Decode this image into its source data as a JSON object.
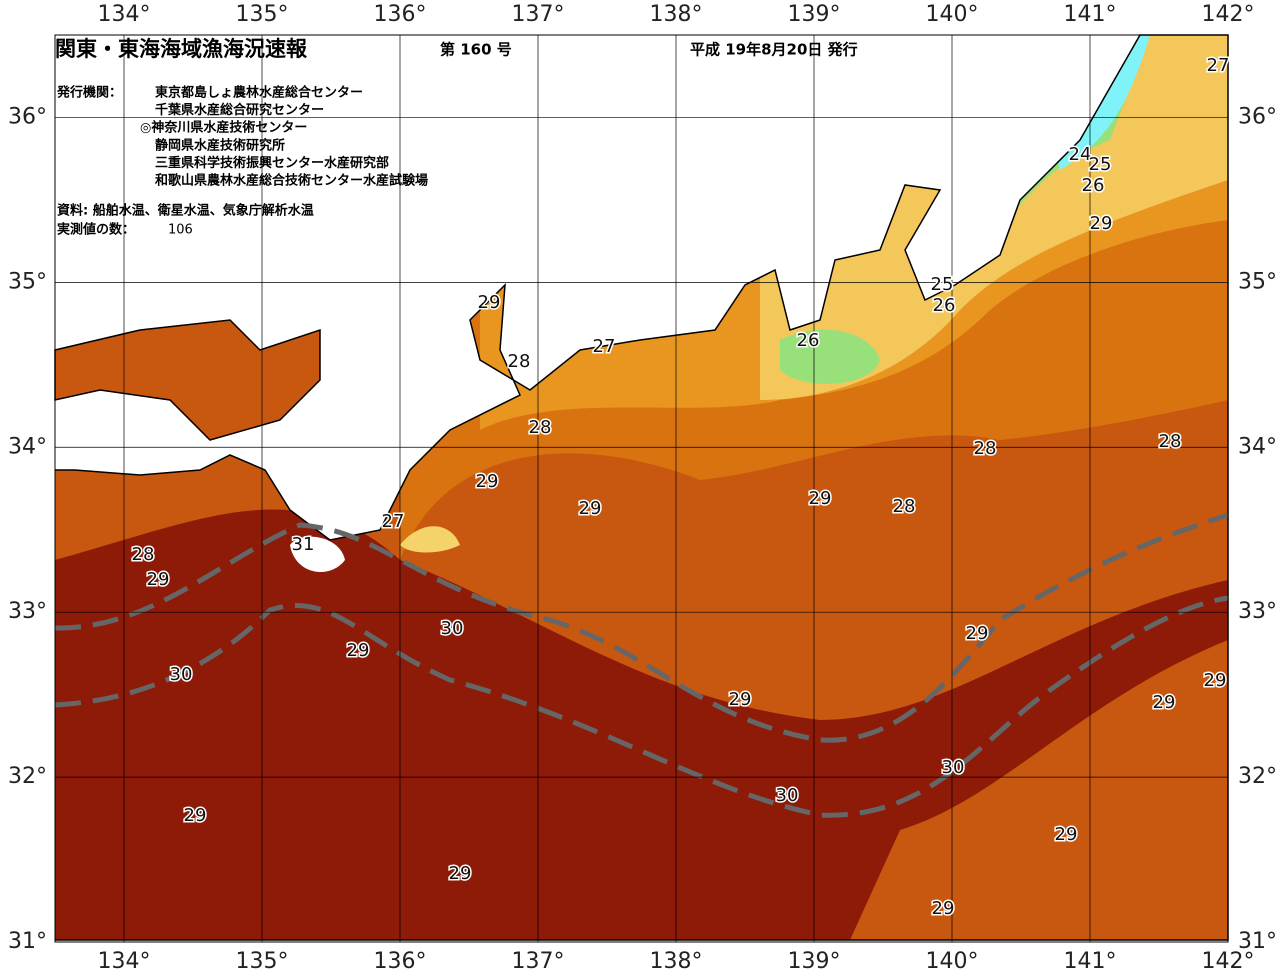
{
  "header": {
    "title": "関東・東海海域漁海況速報",
    "issue": "第 160 号",
    "date": "平成 19年8月20日 発行"
  },
  "info": {
    "publisher_label": "発行機関：",
    "publishers": [
      "東京都島しょ農林水産総合センター",
      "千葉県水産総合研究センター",
      "◎神奈川県水産技術センター",
      "静岡県水産技術研究所",
      "三重県科学技術振興センター水産研究部",
      "和歌山県農林水産総合技術センター水産試験場"
    ],
    "sources": "資料: 船舶水温、衛星水温、気象庁解析水温",
    "count_label": "実測値の数：",
    "count": 106
  },
  "map": {
    "lon_range": [
      133.5,
      142
    ],
    "lat_range": [
      31,
      36.5
    ],
    "lon_ticks": [
      {
        "value": 134,
        "label": "134°"
      },
      {
        "value": 135,
        "label": "135°"
      },
      {
        "value": 136,
        "label": "136°"
      },
      {
        "value": 137,
        "label": "137°"
      },
      {
        "value": 138,
        "label": "138°"
      },
      {
        "value": 139,
        "label": "139°"
      },
      {
        "value": 140,
        "label": "140°"
      },
      {
        "value": 141,
        "label": "141°"
      },
      {
        "value": 142,
        "label": "142°"
      }
    ],
    "lat_ticks": [
      {
        "value": 31,
        "label": "31°"
      },
      {
        "value": 32,
        "label": "32°"
      },
      {
        "value": 33,
        "label": "33°"
      },
      {
        "value": 34,
        "label": "34°"
      },
      {
        "value": 35,
        "label": "35°"
      },
      {
        "value": 36,
        "label": "36°"
      }
    ],
    "contour_labels": [
      27,
      24,
      25,
      26,
      29,
      25,
      26,
      29,
      27,
      26,
      28,
      28,
      28,
      28,
      29,
      29,
      29,
      28,
      27,
      31,
      28,
      29,
      30,
      29,
      29,
      30,
      29,
      29,
      29,
      30,
      30,
      29,
      29,
      29,
      29
    ]
  }
}
